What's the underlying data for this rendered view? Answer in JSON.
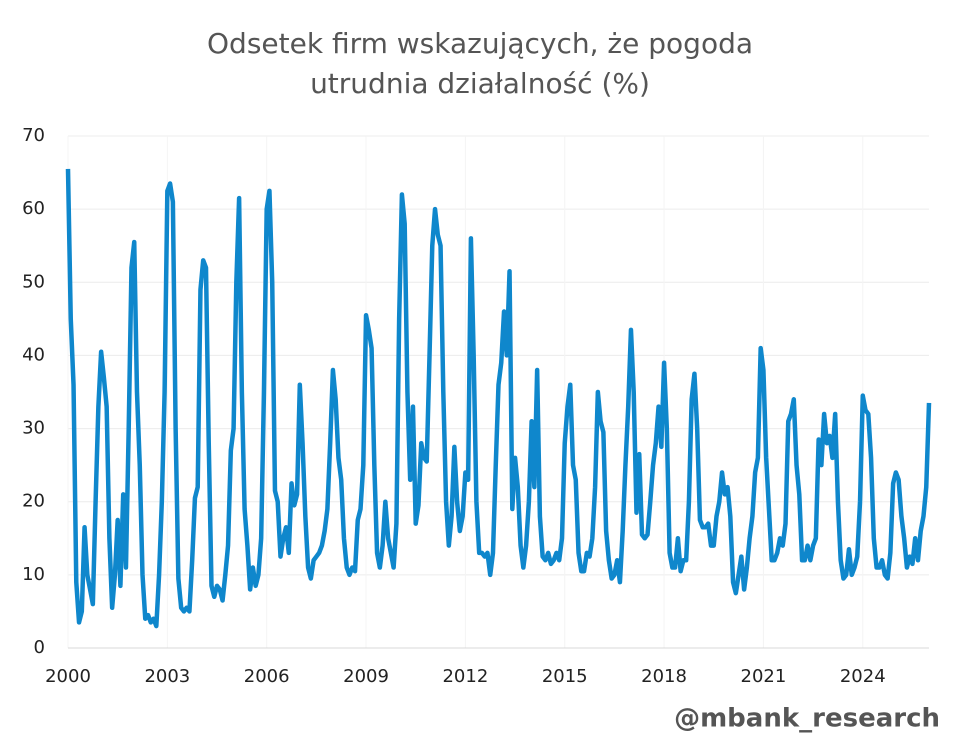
{
  "chart_data": {
    "type": "line",
    "title": [
      "Odsetek firm wskazujących, że pogoda",
      "utrudnia działalność (%)"
    ],
    "footer": "@mbank_research",
    "xlim": [
      2000,
      2026
    ],
    "xticks": [
      2000,
      2003,
      2006,
      2009,
      2012,
      2015,
      2018,
      2021,
      2024
    ],
    "ylim": [
      0,
      70
    ],
    "yticks": [
      0,
      10,
      20,
      30,
      40,
      50,
      60,
      70
    ],
    "grid": true,
    "series": [
      {
        "color": "#0f87cc",
        "x": [
          2000,
          2000.083,
          2000.167,
          2000.25,
          2000.333,
          2000.417,
          2000.5,
          2000.583,
          2000.667,
          2000.75,
          2000.833,
          2000.917,
          2001,
          2001.083,
          2001.167,
          2001.25,
          2001.333,
          2001.417,
          2001.5,
          2001.583,
          2001.667,
          2001.75,
          2001.833,
          2001.917,
          2002,
          2002.083,
          2002.167,
          2002.25,
          2002.333,
          2002.417,
          2002.5,
          2002.583,
          2002.667,
          2002.75,
          2002.833,
          2002.917,
          2003,
          2003.083,
          2003.167,
          2003.25,
          2003.333,
          2003.417,
          2003.5,
          2003.583,
          2003.667,
          2003.75,
          2003.833,
          2003.917,
          2004,
          2004.083,
          2004.167,
          2004.25,
          2004.333,
          2004.417,
          2004.5,
          2004.583,
          2004.667,
          2004.75,
          2004.833,
          2004.917,
          2005,
          2005.083,
          2005.167,
          2005.25,
          2005.333,
          2005.417,
          2005.5,
          2005.583,
          2005.667,
          2005.75,
          2005.833,
          2005.917,
          2006,
          2006.083,
          2006.167,
          2006.25,
          2006.333,
          2006.417,
          2006.5,
          2006.583,
          2006.667,
          2006.75,
          2006.833,
          2006.917,
          2007,
          2007.083,
          2007.167,
          2007.25,
          2007.333,
          2007.417,
          2007.5,
          2007.583,
          2007.667,
          2007.75,
          2007.833,
          2007.917,
          2008,
          2008.083,
          2008.167,
          2008.25,
          2008.333,
          2008.417,
          2008.5,
          2008.583,
          2008.667,
          2008.75,
          2008.833,
          2008.917,
          2009,
          2009.083,
          2009.167,
          2009.25,
          2009.333,
          2009.417,
          2009.5,
          2009.583,
          2009.667,
          2009.75,
          2009.833,
          2009.917,
          2010,
          2010.083,
          2010.167,
          2010.25,
          2010.333,
          2010.417,
          2010.5,
          2010.583,
          2010.667,
          2010.75,
          2010.833,
          2010.917,
          2011,
          2011.083,
          2011.167,
          2011.25,
          2011.333,
          2011.417,
          2011.5,
          2011.583,
          2011.667,
          2011.75,
          2011.833,
          2011.917,
          2012,
          2012.083,
          2012.167,
          2012.25,
          2012.333,
          2012.417,
          2012.5,
          2012.583,
          2012.667,
          2012.75,
          2012.833,
          2012.917,
          2013,
          2013.083,
          2013.167,
          2013.25,
          2013.333,
          2013.417,
          2013.5,
          2013.583,
          2013.667,
          2013.75,
          2013.833,
          2013.917,
          2014,
          2014.083,
          2014.167,
          2014.25,
          2014.333,
          2014.417,
          2014.5,
          2014.583,
          2014.667,
          2014.75,
          2014.833,
          2014.917,
          2015,
          2015.083,
          2015.167,
          2015.25,
          2015.333,
          2015.417,
          2015.5,
          2015.583,
          2015.667,
          2015.75,
          2015.833,
          2015.917,
          2016,
          2016.083,
          2016.167,
          2016.25,
          2016.333,
          2016.417,
          2016.5,
          2016.583,
          2016.667,
          2016.75,
          2016.833,
          2016.917,
          2017,
          2017.083,
          2017.167,
          2017.25,
          2017.333,
          2017.417,
          2017.5,
          2017.583,
          2017.667,
          2017.75,
          2017.833,
          2017.917,
          2018,
          2018.083,
          2018.167,
          2018.25,
          2018.333,
          2018.417,
          2018.5,
          2018.583,
          2018.667,
          2018.75,
          2018.833,
          2018.917,
          2019,
          2019.083,
          2019.167,
          2019.25,
          2019.333,
          2019.417,
          2019.5,
          2019.583,
          2019.667,
          2019.75,
          2019.833,
          2019.917,
          2020,
          2020.083,
          2020.167,
          2020.25,
          2020.333,
          2020.417,
          2020.5,
          2020.583,
          2020.667,
          2020.75,
          2020.833,
          2020.917,
          2021,
          2021.083,
          2021.167,
          2021.25,
          2021.333,
          2021.417,
          2021.5,
          2021.583,
          2021.667,
          2021.75,
          2021.833,
          2021.917,
          2022,
          2022.083,
          2022.167,
          2022.25,
          2022.333,
          2022.417,
          2022.5,
          2022.583,
          2022.667,
          2022.75,
          2022.833,
          2022.917,
          2023,
          2023.083,
          2023.167,
          2023.25,
          2023.333,
          2023.417,
          2023.5,
          2023.583,
          2023.667,
          2023.75,
          2023.833,
          2023.917,
          2024,
          2024.083,
          2024.167,
          2024.25,
          2024.333,
          2024.417,
          2024.5,
          2024.583,
          2024.667,
          2024.75,
          2024.833,
          2024.917,
          2025,
          2025.083,
          2025.167,
          2025.25,
          2025.333,
          2025.417,
          2025.5,
          2025.583,
          2025.667,
          2025.75,
          2025.833,
          2025.917,
          2026
        ],
        "values": [
          65.5,
          45,
          36,
          9,
          3.5,
          5,
          16.5,
          10,
          8,
          6,
          20,
          33,
          40.5,
          37,
          33,
          15,
          5.5,
          10,
          17.5,
          8.5,
          21,
          11,
          30,
          52,
          55.5,
          35,
          25,
          10,
          4,
          4.5,
          3.5,
          4,
          3,
          10,
          20,
          35,
          62.5,
          63.5,
          61,
          30,
          9.5,
          5.5,
          5,
          5.5,
          5,
          12,
          20.5,
          22,
          49,
          53,
          52,
          28,
          8.5,
          7,
          8.5,
          8,
          6.5,
          10,
          14,
          27,
          30,
          50,
          61.5,
          35,
          19,
          14,
          8,
          11,
          8.5,
          10,
          15,
          35,
          60,
          62.5,
          50,
          21.5,
          20,
          12.5,
          15,
          16.5,
          13,
          22.5,
          19.5,
          21,
          36,
          28,
          18,
          11,
          9.5,
          12,
          12.5,
          13,
          14,
          16,
          19,
          28,
          38,
          34,
          26,
          23,
          15,
          11,
          10,
          11,
          10.5,
          17.5,
          19,
          25,
          45.5,
          43.5,
          41,
          25,
          13,
          11,
          14,
          20,
          15,
          13,
          11,
          17,
          45,
          62,
          58,
          35,
          23,
          33,
          17,
          19.5,
          28,
          26,
          25.5,
          40,
          55,
          60,
          56.5,
          55,
          35,
          20,
          14,
          18,
          27.5,
          20,
          16,
          18,
          24,
          23,
          56,
          40,
          20,
          13,
          13,
          12.5,
          13,
          10,
          13,
          25,
          36,
          39,
          46,
          40,
          51.5,
          19,
          26,
          22,
          14,
          11,
          14,
          20,
          31,
          22,
          38,
          18,
          12.5,
          12,
          13,
          11.5,
          12,
          13,
          12,
          15,
          28,
          33,
          36,
          25,
          23,
          13,
          10.5,
          10.5,
          13,
          12.5,
          15,
          22,
          35,
          31,
          29.5,
          16,
          12,
          9.5,
          10,
          12,
          9,
          16,
          25,
          33,
          43.5,
          35,
          18.5,
          26.5,
          15.5,
          15,
          15.5,
          20,
          25,
          28,
          33,
          27.5,
          39,
          30,
          13,
          11,
          11,
          15,
          10.5,
          12,
          12,
          20,
          34,
          37.5,
          30,
          17.5,
          16.5,
          16.5,
          17,
          14,
          14,
          18,
          20,
          24,
          21,
          22,
          18,
          9,
          7.5,
          10,
          12.5,
          8,
          11,
          15,
          18,
          24,
          26,
          41,
          38,
          26,
          19,
          12,
          12,
          13,
          15,
          14,
          17,
          31,
          32,
          34,
          25,
          21,
          12,
          12,
          14,
          12,
          14,
          15,
          28.5,
          25,
          32,
          28,
          29,
          26,
          32,
          20,
          12,
          9.5,
          10,
          13.5,
          10,
          11,
          12.5,
          20,
          34.5,
          32.5,
          32,
          26,
          15,
          11,
          11,
          12,
          10,
          9.5,
          13,
          22.5,
          24,
          23,
          18,
          15,
          11,
          12.5,
          11.5,
          15,
          12,
          16,
          18,
          22,
          33.5
        ]
      }
    ]
  }
}
